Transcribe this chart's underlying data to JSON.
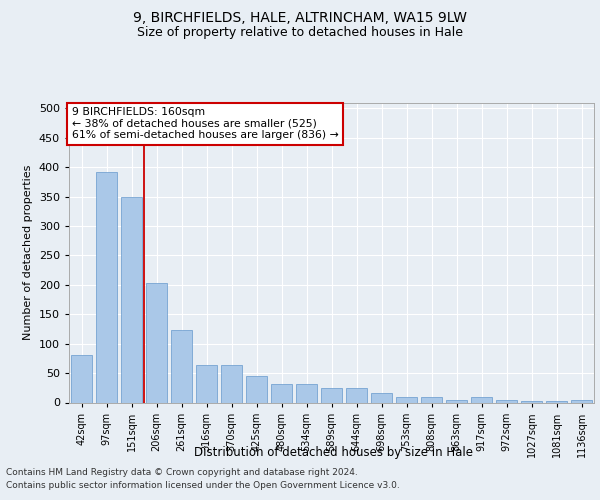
{
  "title1": "9, BIRCHFIELDS, HALE, ALTRINCHAM, WA15 9LW",
  "title2": "Size of property relative to detached houses in Hale",
  "xlabel": "Distribution of detached houses by size in Hale",
  "ylabel": "Number of detached properties",
  "categories": [
    "42sqm",
    "97sqm",
    "151sqm",
    "206sqm",
    "261sqm",
    "316sqm",
    "370sqm",
    "425sqm",
    "480sqm",
    "534sqm",
    "589sqm",
    "644sqm",
    "698sqm",
    "753sqm",
    "808sqm",
    "863sqm",
    "917sqm",
    "972sqm",
    "1027sqm",
    "1081sqm",
    "1136sqm"
  ],
  "values": [
    80,
    392,
    350,
    204,
    123,
    64,
    64,
    45,
    32,
    32,
    25,
    25,
    16,
    9,
    9,
    5,
    10,
    5,
    3,
    3,
    4
  ],
  "bar_color": "#aac8e8",
  "bar_edge_color": "#6699cc",
  "vline_color": "#cc0000",
  "annotation_title": "9 BIRCHFIELDS: 160sqm",
  "annotation_line1": "← 38% of detached houses are smaller (525)",
  "annotation_line2": "61% of semi-detached houses are larger (836) →",
  "annotation_box_color": "#ffffff",
  "annotation_box_edge": "#cc0000",
  "footer1": "Contains HM Land Registry data © Crown copyright and database right 2024.",
  "footer2": "Contains public sector information licensed under the Open Government Licence v3.0.",
  "ylim": [
    0,
    510
  ],
  "yticks": [
    0,
    50,
    100,
    150,
    200,
    250,
    300,
    350,
    400,
    450,
    500
  ],
  "background_color": "#e8eef4",
  "grid_color": "#ffffff"
}
